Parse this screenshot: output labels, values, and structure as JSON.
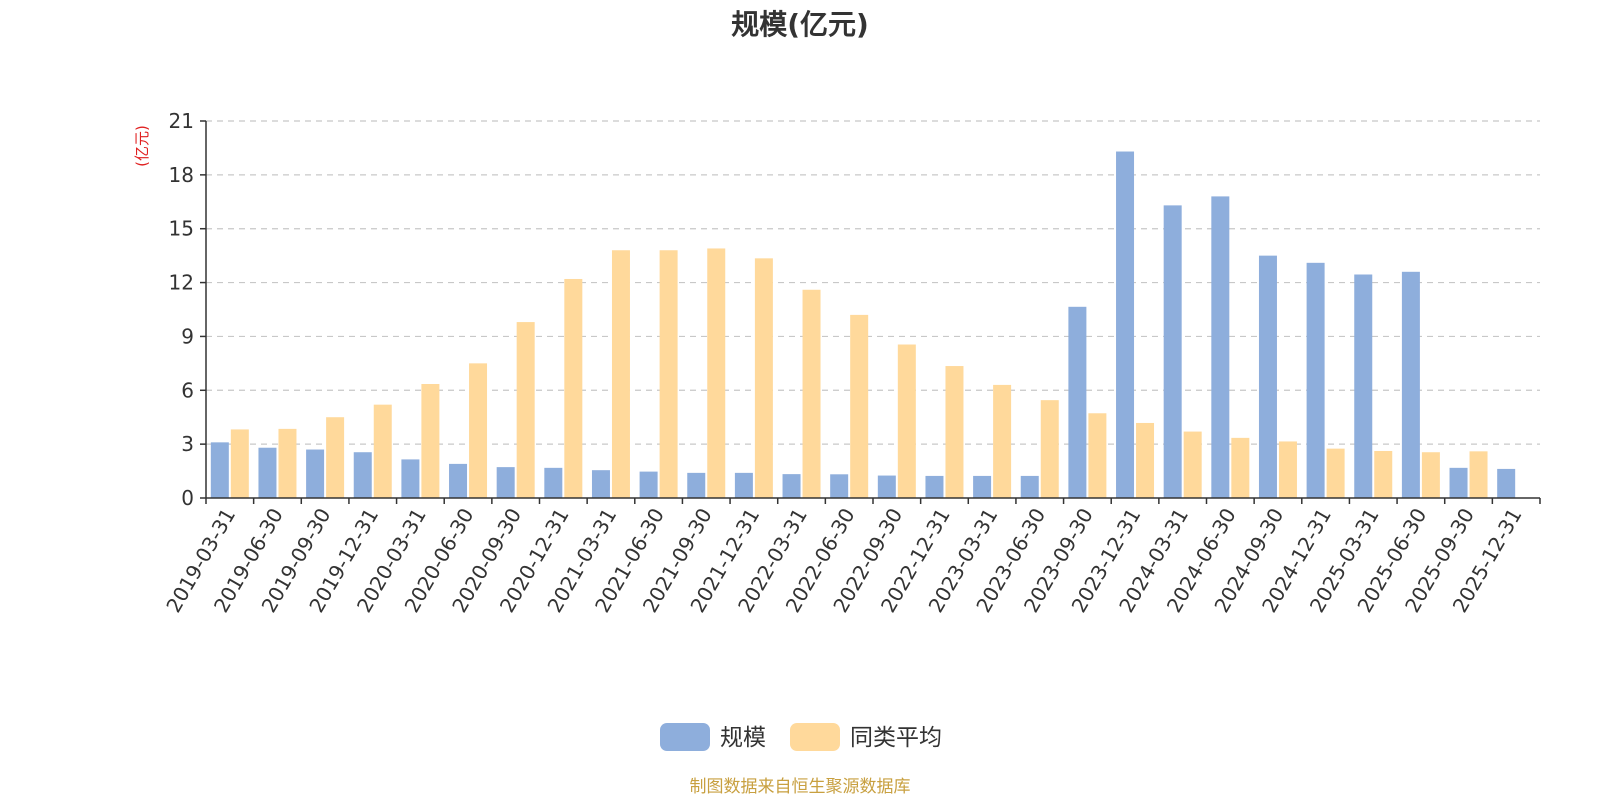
{
  "chart_data": {
    "type": "bar",
    "title": "规模(亿元)",
    "ylabel": "(亿元)",
    "ylim": [
      0,
      21
    ],
    "yticks": [
      0,
      3,
      6,
      9,
      12,
      15,
      18,
      21
    ],
    "grid": true,
    "legend_position": "bottom-center",
    "categories": [
      "2019-03-31",
      "2019-06-30",
      "2019-09-30",
      "2019-12-31",
      "2020-03-31",
      "2020-06-30",
      "2020-09-30",
      "2020-12-31",
      "2021-03-31",
      "2021-06-30",
      "2021-09-30",
      "2021-12-31",
      "2022-03-31",
      "2022-06-30",
      "2022-09-30",
      "2022-12-31",
      "2023-03-31",
      "2023-06-30",
      "2023-09-30",
      "2023-12-31",
      "2024-03-31",
      "2024-06-30",
      "2024-09-30",
      "2024-12-31",
      "2025-03-31",
      "2025-06-30",
      "2025-09-30",
      "2025-12-31"
    ],
    "series": [
      {
        "name": "规模",
        "color": "#8eaedc",
        "values": [
          3.1,
          2.8,
          2.7,
          2.55,
          2.15,
          1.9,
          1.72,
          1.68,
          1.55,
          1.47,
          1.4,
          1.4,
          1.33,
          1.32,
          1.25,
          1.23,
          1.23,
          1.23,
          10.65,
          19.3,
          16.3,
          16.8,
          13.5,
          13.1,
          12.45,
          12.6,
          1.68,
          1.62
        ]
      },
      {
        "name": "同类平均",
        "color": "#ffd99b",
        "values": [
          3.82,
          3.85,
          4.5,
          5.2,
          6.35,
          7.5,
          9.8,
          12.2,
          13.8,
          13.8,
          13.9,
          13.35,
          11.6,
          10.2,
          8.55,
          7.35,
          6.3,
          5.45,
          4.72,
          4.18,
          3.7,
          3.35,
          3.15,
          2.75,
          2.62,
          2.55,
          2.6,
          null
        ]
      }
    ]
  },
  "source": {
    "text": "制图数据来自恒生聚源数据库",
    "color": "#c8a040"
  },
  "colors": {
    "axis": "#333333",
    "grid": "#c8c8c8",
    "unit_label": "#e02020"
  }
}
